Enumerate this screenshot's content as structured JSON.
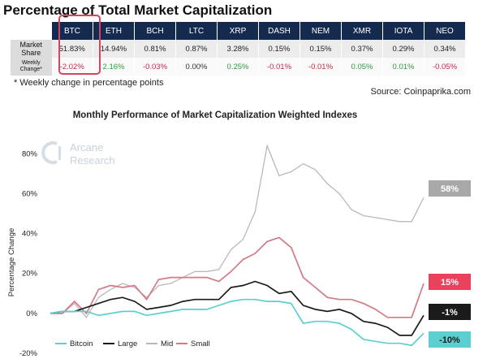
{
  "header": {
    "title": "Percentage of Total Market Capitalization"
  },
  "table": {
    "columns": [
      "BTC",
      "ETH",
      "BCH",
      "LTC",
      "XRP",
      "DASH",
      "NEM",
      "XMR",
      "IOTA",
      "NEO"
    ],
    "rows": [
      {
        "label_lines": [
          "Market",
          "Share"
        ],
        "values": [
          "51.83%",
          "14.94%",
          "0.81%",
          "0.87%",
          "3.28%",
          "0.15%",
          "0.15%",
          "0.37%",
          "0.29%",
          "0.34%"
        ]
      },
      {
        "label_lines": [
          "Weekly",
          "Change*"
        ],
        "values": [
          "-2.02%",
          "2.16%",
          "-0.03%",
          "0.00%",
          "0.25%",
          "-0.01%",
          "-0.01%",
          "0.05%",
          "0.01%",
          "-0.05%"
        ]
      }
    ],
    "footnote": "* Weekly change in percentage points",
    "source": "Source: Coinpaprika.com"
  },
  "watermark": {
    "line1": "Arcane",
    "line2": "Research",
    "icon": "arcane-logo-icon"
  },
  "chart_data": {
    "type": "line",
    "title": "Monthly Performance of Market Capitalization Weighted Indexes",
    "ylabel": "Percentage Change",
    "xlabel": "",
    "ylim": [
      -20,
      85
    ],
    "yticks": [
      -20,
      0,
      20,
      40,
      60,
      80
    ],
    "ytick_labels": [
      "-20%",
      "0%",
      "20%",
      "40%",
      "60%",
      "80%"
    ],
    "grid": false,
    "legend_position": "bottom-left",
    "series": [
      {
        "name": "Bitcoin",
        "color": "#5ccfd0",
        "end_label": "-10%",
        "values": [
          0,
          1,
          1,
          1,
          -1,
          0,
          1,
          1,
          -1,
          0,
          1,
          2,
          2,
          2,
          4,
          6,
          7,
          7,
          6,
          6,
          5,
          -5,
          -4,
          -4,
          -5,
          -8,
          -13,
          -14,
          -15,
          -15,
          -16,
          -10
        ]
      },
      {
        "name": "Large",
        "color": "#1b1b1b",
        "end_label": "-1%",
        "values": [
          0,
          1,
          1,
          3,
          5,
          7,
          8,
          6,
          2,
          3,
          4,
          6,
          7,
          7,
          7,
          13,
          14,
          16,
          14,
          10,
          11,
          4,
          2,
          1,
          2,
          0,
          -4,
          -5,
          -7,
          -11,
          -11,
          -1
        ]
      },
      {
        "name": "Mid",
        "color": "#b9b9b9",
        "end_label": "58%",
        "values": [
          0,
          0,
          5,
          -2,
          8,
          12,
          15,
          13,
          8,
          14,
          15,
          18,
          21,
          21,
          22,
          32,
          37,
          51,
          84,
          69,
          71,
          75,
          72,
          65,
          60,
          52,
          49,
          48,
          47,
          46,
          46,
          58
        ]
      },
      {
        "name": "Small",
        "color": "#d27a86",
        "end_label": "15%",
        "values": [
          0,
          0,
          6,
          0,
          12,
          14,
          13,
          14,
          7,
          17,
          18,
          18,
          18,
          18,
          16,
          21,
          27,
          30,
          36,
          38,
          33,
          18,
          13,
          8,
          7,
          7,
          5,
          2,
          -2,
          -2,
          -2,
          15
        ]
      }
    ],
    "end_label_colors": {
      "Mid": "#a8a8a8",
      "Small": "#e8425c",
      "Large": "#1b1b1b",
      "Bitcoin": "#5ccfd0"
    }
  }
}
